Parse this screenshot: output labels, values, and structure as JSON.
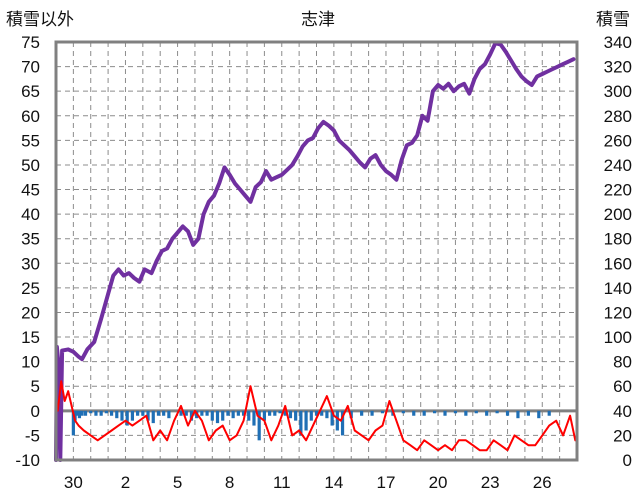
{
  "chart_data": {
    "type": "line",
    "title": "志津",
    "left_axis": {
      "label": "積雪以外",
      "range": [
        -10,
        75
      ],
      "ticks": [
        "75",
        "70",
        "65",
        "60",
        "55",
        "50",
        "45",
        "40",
        "35",
        "30",
        "25",
        "20",
        "15",
        "10",
        "5",
        "0",
        "-5",
        "-10"
      ]
    },
    "right_axis": {
      "label": "積雪",
      "range": [
        0,
        340
      ],
      "ticks": [
        "340",
        "320",
        "300",
        "280",
        "260",
        "240",
        "220",
        "200",
        "180",
        "160",
        "140",
        "120",
        "100",
        "80",
        "60",
        "40",
        "20",
        "0"
      ]
    },
    "x_axis": {
      "label": "",
      "range": [
        0,
        30
      ],
      "tick_labels": [
        "30",
        "2",
        "5",
        "8",
        "11",
        "14",
        "17",
        "20",
        "23",
        "26"
      ],
      "tick_positions": [
        1,
        4,
        7,
        10,
        13,
        16,
        19,
        22,
        25,
        28
      ]
    },
    "grid": true,
    "legend": "none",
    "colors": {
      "snow_depth": "#7030a0",
      "temperature": "#ff0000",
      "precipitation": "#1f6fb5",
      "frame": "#808080",
      "zero_line": "#808080",
      "grid": "#8c8c8c"
    },
    "series": [
      {
        "key": "snow_depth",
        "axis": "right",
        "x": [
          0,
          0.05,
          0.1,
          0.15,
          0.25,
          0.35,
          0.7,
          1.0,
          1.3,
          1.5,
          1.8,
          2.2,
          2.6,
          3.0,
          3.3,
          3.6,
          3.9,
          4.2,
          4.5,
          4.8,
          5.1,
          5.5,
          5.8,
          6.1,
          6.4,
          6.7,
          7.0,
          7.3,
          7.6,
          7.9,
          8.2,
          8.5,
          8.8,
          9.1,
          9.4,
          9.7,
          10.0,
          10.3,
          10.6,
          10.9,
          11.2,
          11.5,
          11.8,
          12.1,
          12.4,
          12.7,
          13.0,
          13.3,
          13.6,
          13.9,
          14.2,
          14.5,
          14.8,
          15.1,
          15.4,
          15.7,
          16.0,
          16.3,
          16.6,
          16.9,
          17.2,
          17.5,
          17.8,
          18.1,
          18.4,
          18.7,
          19.0,
          19.3,
          19.6,
          19.9,
          20.2,
          20.5,
          20.8,
          21.1,
          21.4,
          21.7,
          22.0,
          22.3,
          22.6,
          22.9,
          23.2,
          23.5,
          23.8,
          24.1,
          24.4,
          24.7,
          25.0,
          25.3,
          25.6,
          25.9,
          26.2,
          26.5,
          26.8,
          27.1,
          27.4,
          27.7,
          28.0,
          28.3,
          28.6,
          28.9,
          29.2,
          29.5,
          29.8
        ],
        "y": [
          0,
          92,
          85,
          78,
          0,
          89,
          90,
          88,
          84,
          82,
          90,
          96,
          115,
          135,
          150,
          155,
          150,
          152,
          148,
          145,
          155,
          152,
          162,
          170,
          172,
          180,
          185,
          190,
          186,
          175,
          180,
          200,
          210,
          215,
          225,
          238,
          232,
          225,
          220,
          215,
          210,
          222,
          226,
          235,
          228,
          230,
          232,
          236,
          240,
          247,
          255,
          260,
          262,
          270,
          275,
          272,
          268,
          260,
          256,
          252,
          247,
          242,
          238,
          245,
          248,
          240,
          235,
          232,
          228,
          244,
          256,
          258,
          264,
          280,
          276,
          300,
          305,
          302,
          306,
          300,
          304,
          306,
          298,
          310,
          318,
          322,
          330,
          339,
          338,
          332,
          325,
          318,
          312,
          308,
          305,
          312,
          314,
          316,
          318,
          320,
          322,
          324,
          326
        ],
        "note": ""
      },
      {
        "key": "temperature",
        "axis": "left",
        "x": [
          0.1,
          0.3,
          0.5,
          0.7,
          0.9,
          1.1,
          1.3,
          1.6,
          2.0,
          2.4,
          2.8,
          3.2,
          3.6,
          4.0,
          4.4,
          4.8,
          5.2,
          5.6,
          6.0,
          6.4,
          6.8,
          7.2,
          7.6,
          8.0,
          8.4,
          8.8,
          9.2,
          9.6,
          10.0,
          10.4,
          10.8,
          11.2,
          11.6,
          12.0,
          12.4,
          12.8,
          13.2,
          13.6,
          14.0,
          14.4,
          14.8,
          15.2,
          15.6,
          16.0,
          16.4,
          16.8,
          17.2,
          17.6,
          18.0,
          18.4,
          18.8,
          19.2,
          19.6,
          20.0,
          20.4,
          20.8,
          21.2,
          21.6,
          22.0,
          22.4,
          22.8,
          23.2,
          23.6,
          24.0,
          24.4,
          24.8,
          25.2,
          25.6,
          26.0,
          26.4,
          26.8,
          27.2,
          27.6,
          28.0,
          28.4,
          28.8,
          29.2,
          29.6,
          29.9
        ],
        "y": [
          0,
          6,
          2,
          4,
          1,
          -2,
          -3,
          -4,
          -5,
          -6,
          -5,
          -4,
          -3,
          -2,
          -3,
          -2,
          -1,
          -6,
          -4,
          -6,
          -2,
          1,
          -3,
          0,
          -2,
          -6,
          -4,
          -3,
          -6,
          -5,
          -2,
          5,
          -1,
          -2,
          -6,
          -3,
          1,
          -5,
          -4,
          -6,
          -3,
          0,
          3,
          -1,
          -2,
          1,
          -4,
          -5,
          -6,
          -4,
          -3,
          2,
          -2,
          -6,
          -7,
          -8,
          -6,
          -7,
          -8,
          -7,
          -8,
          -6,
          -6,
          -7,
          -8,
          -8,
          -6,
          -7,
          -8,
          -5,
          -6,
          -7,
          -7,
          -5,
          -3,
          -2,
          -5,
          -1,
          -6
        ]
      },
      {
        "key": "precipitation",
        "axis": "left",
        "type": "bar",
        "x": [
          1.0,
          1.1,
          1.2,
          1.35,
          1.5,
          1.7,
          2.0,
          2.3,
          2.6,
          2.9,
          3.2,
          3.5,
          3.8,
          4.1,
          4.4,
          4.7,
          5.0,
          5.3,
          5.6,
          5.9,
          6.2,
          6.5,
          7.2,
          7.5,
          7.8,
          8.1,
          8.4,
          8.7,
          9.0,
          9.3,
          9.6,
          9.9,
          10.2,
          10.5,
          10.8,
          11.1,
          11.4,
          11.7,
          12.0,
          12.3,
          12.6,
          12.9,
          13.2,
          13.5,
          13.8,
          14.1,
          14.4,
          14.7,
          15.0,
          15.3,
          15.6,
          15.9,
          16.2,
          16.5,
          17.0,
          17.6,
          18.2,
          18.8,
          19.4,
          20.0,
          20.6,
          21.2,
          21.8,
          22.4,
          23.0,
          23.6,
          24.2,
          24.8,
          25.4,
          26.0,
          26.6,
          27.2,
          27.8,
          28.4
        ],
        "y": [
          -5,
          -2,
          -1,
          -1.5,
          -1,
          -1,
          -0.5,
          -1,
          -1,
          -0.5,
          -1,
          -1.5,
          -2,
          -3,
          -2,
          -1,
          -1,
          -2,
          -2.5,
          -1,
          -1,
          -1.5,
          -1,
          -1,
          -2,
          -1.5,
          -1,
          -1,
          -2,
          -2.5,
          -2,
          -1,
          -1.5,
          -1,
          -1,
          -2,
          -3,
          -6,
          -2,
          -1,
          -1,
          -0.5,
          -1,
          -1.5,
          -2,
          -5,
          -4,
          -2,
          -1,
          -1,
          -1.5,
          -3,
          -4,
          -5,
          -1.5,
          -1,
          -1,
          -0.5,
          -1,
          -0.5,
          -1,
          -1,
          -0.5,
          -1,
          -0.5,
          -1,
          -0.5,
          -1,
          -0.5,
          -1,
          -1.5,
          -1,
          -1.5,
          -1
        ]
      }
    ]
  }
}
